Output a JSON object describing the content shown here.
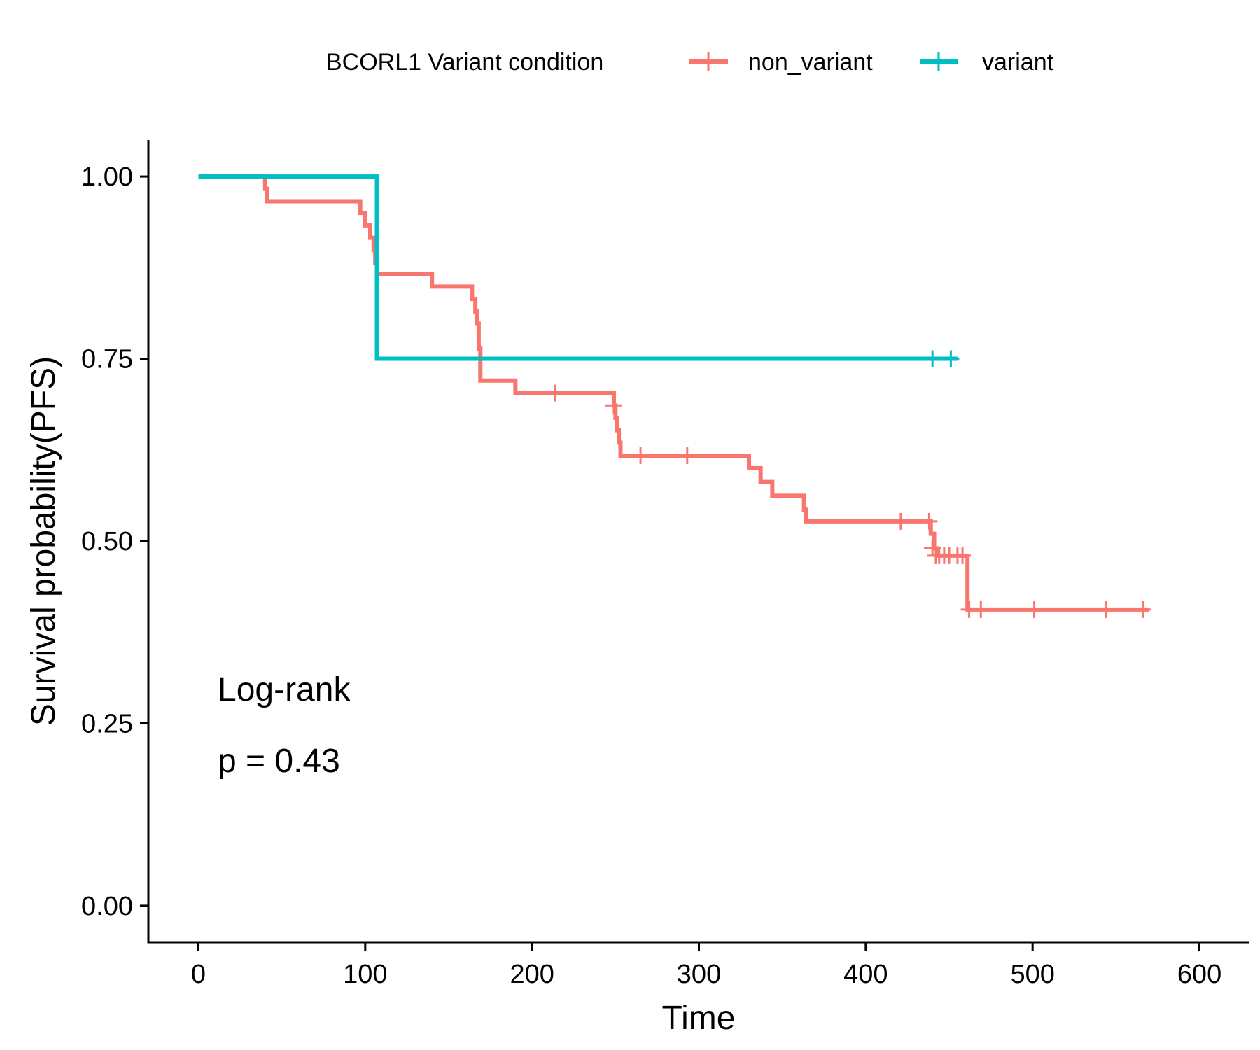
{
  "chart_data": {
    "type": "line",
    "subtype": "kaplan-meier step",
    "title": "",
    "xlabel": "Time",
    "ylabel": "Survival probability(PFS)",
    "xlim": [
      -30,
      630
    ],
    "ylim": [
      -0.05,
      1.05
    ],
    "x_ticks": [
      0,
      100,
      200,
      300,
      400,
      500,
      600
    ],
    "x_tick_labels": [
      "0",
      "100",
      "200",
      "300",
      "400",
      "500",
      "600"
    ],
    "y_ticks": [
      0,
      0.25,
      0.5,
      0.75,
      1.0
    ],
    "y_tick_labels": [
      "0.00",
      "0.25",
      "0.50",
      "0.75",
      "1.00"
    ],
    "grid": false,
    "legend": {
      "title": "BCORL1 Variant condition",
      "placement": "top",
      "entries": [
        "non_variant",
        "variant"
      ]
    },
    "annotations": [
      "Log-rank",
      "p = 0.43"
    ],
    "series": [
      {
        "name": "non_variant",
        "color": "#F8766D",
        "steps": [
          [
            0,
            1.0
          ],
          [
            40,
            0.983
          ],
          [
            41,
            0.966
          ],
          [
            97,
            0.95
          ],
          [
            100,
            0.933
          ],
          [
            103,
            0.916
          ],
          [
            105,
            0.899
          ],
          [
            106,
            0.882
          ],
          [
            107,
            0.866
          ],
          [
            140,
            0.849
          ],
          [
            164,
            0.832
          ],
          [
            166,
            0.815
          ],
          [
            167,
            0.798
          ],
          [
            168,
            0.764
          ],
          [
            169,
            0.72
          ],
          [
            190,
            0.703
          ],
          [
            249,
            0.686
          ],
          [
            250,
            0.669
          ],
          [
            251,
            0.652
          ],
          [
            252,
            0.635
          ],
          [
            253,
            0.617
          ],
          [
            330,
            0.6
          ],
          [
            337,
            0.581
          ],
          [
            344,
            0.562
          ],
          [
            363,
            0.543
          ],
          [
            364,
            0.527
          ],
          [
            439,
            0.51
          ],
          [
            441,
            0.49
          ],
          [
            443,
            0.48
          ],
          [
            461,
            0.406
          ],
          [
            570,
            0.406
          ]
        ],
        "censor_times": [
          214,
          249,
          265,
          293,
          421,
          438,
          440,
          442,
          444,
          447,
          450,
          455,
          458,
          462,
          469,
          501,
          544,
          566
        ],
        "censor_values": [
          0.703,
          0.686,
          0.617,
          0.617,
          0.527,
          0.527,
          0.49,
          0.48,
          0.48,
          0.48,
          0.48,
          0.48,
          0.48,
          0.406,
          0.406,
          0.406,
          0.406,
          0.406
        ]
      },
      {
        "name": "variant",
        "color": "#00BFC4",
        "steps": [
          [
            0,
            1.0
          ],
          [
            107,
            0.75
          ],
          [
            455,
            0.75
          ]
        ],
        "censor_times": [
          440,
          451
        ],
        "censor_values": [
          0.75,
          0.75
        ]
      }
    ]
  }
}
